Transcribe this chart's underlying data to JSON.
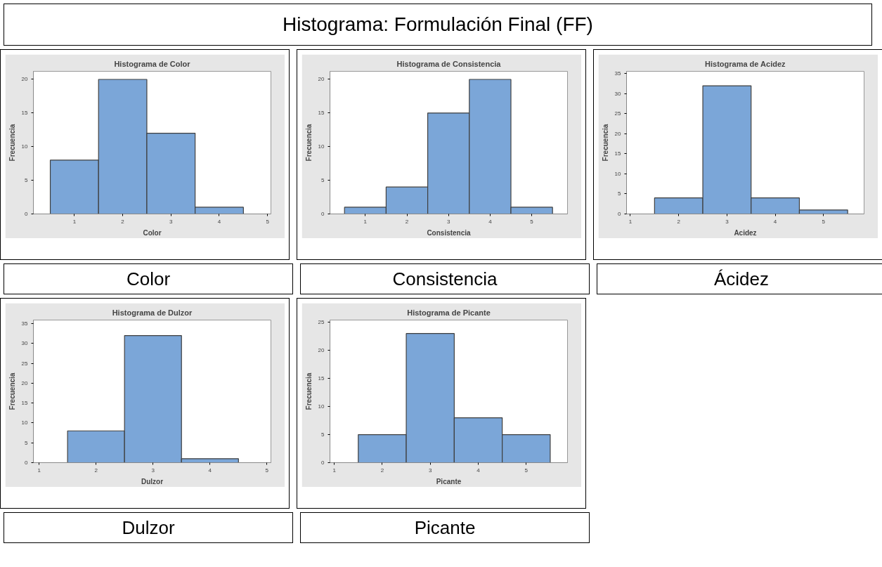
{
  "chart_data": [
    {
      "type": "other",
      "title": "Histograma: Formulación Final (FF)"
    },
    {
      "type": "histogram",
      "title": "Histograma de Color",
      "xlabel": "Color",
      "ylabel": "Frecuencia",
      "bins": [
        0.5,
        1.5,
        2.5,
        3.5,
        4.5
      ],
      "values": [
        8,
        20,
        12,
        1
      ],
      "color": "#7ba6d8",
      "xlim": [
        0.15,
        5.07
      ],
      "xticks": [
        1,
        2,
        3,
        4,
        5
      ],
      "ylim": [
        0,
        21.2
      ],
      "yticks": [
        0,
        5,
        10,
        15,
        20
      ],
      "grid": false,
      "annotations": [
        "Color"
      ]
    },
    {
      "type": "histogram",
      "title": "Histograma de Consistencia",
      "xlabel": "Consistencia",
      "ylabel": "Frecuencia",
      "bins": [
        0.5,
        1.5,
        2.5,
        3.5,
        4.5,
        5.5
      ],
      "values": [
        1,
        4,
        15,
        20,
        1
      ],
      "color": "#7ba6d8",
      "xlim": [
        0.15,
        5.86
      ],
      "xticks": [
        1,
        2,
        3,
        4,
        5
      ],
      "ylim": [
        0,
        21.2
      ],
      "yticks": [
        0,
        5,
        10,
        15,
        20
      ],
      "grid": false,
      "annotations": [
        "Consistencia"
      ]
    },
    {
      "type": "histogram",
      "title": "Histograma de Acidez",
      "xlabel": "Acidez",
      "ylabel": "Frecuencia",
      "bins": [
        1.5,
        2.5,
        3.5,
        4.5,
        5.5
      ],
      "values": [
        4,
        32,
        4,
        1
      ],
      "color": "#7ba6d8",
      "xlim": [
        0.92,
        5.84
      ],
      "xticks": [
        1,
        2,
        3,
        4,
        5
      ],
      "ylim": [
        0,
        35.6
      ],
      "yticks": [
        0,
        5,
        10,
        15,
        20,
        25,
        30,
        35
      ],
      "grid": false,
      "annotations": [
        "Ácidez"
      ]
    },
    {
      "type": "histogram",
      "title": "Histograma de Dulzor",
      "xlabel": "Dulzor",
      "ylabel": "Frecuencia",
      "bins": [
        1.5,
        2.5,
        3.5,
        4.5
      ],
      "values": [
        8,
        32,
        1
      ],
      "color": "#7ba6d8",
      "xlim": [
        0.9,
        5.07
      ],
      "xticks": [
        1,
        2,
        3,
        4,
        5
      ],
      "ylim": [
        0,
        35.9
      ],
      "yticks": [
        0,
        5,
        10,
        15,
        20,
        25,
        30,
        35
      ],
      "grid": false,
      "annotations": [
        "Dulzor"
      ]
    },
    {
      "type": "histogram",
      "title": "Histograma de Picante",
      "xlabel": "Picante",
      "ylabel": "Frecuencia",
      "bins": [
        1.5,
        2.5,
        3.5,
        4.5,
        5.5
      ],
      "values": [
        5,
        23,
        8,
        5
      ],
      "color": "#7ba6d8",
      "xlim": [
        0.91,
        5.86
      ],
      "xticks": [
        1,
        2,
        3,
        4,
        5
      ],
      "ylim": [
        0,
        25.4
      ],
      "yticks": [
        0,
        5,
        10,
        15,
        20,
        25
      ],
      "grid": false,
      "annotations": [
        "Picante"
      ]
    }
  ]
}
